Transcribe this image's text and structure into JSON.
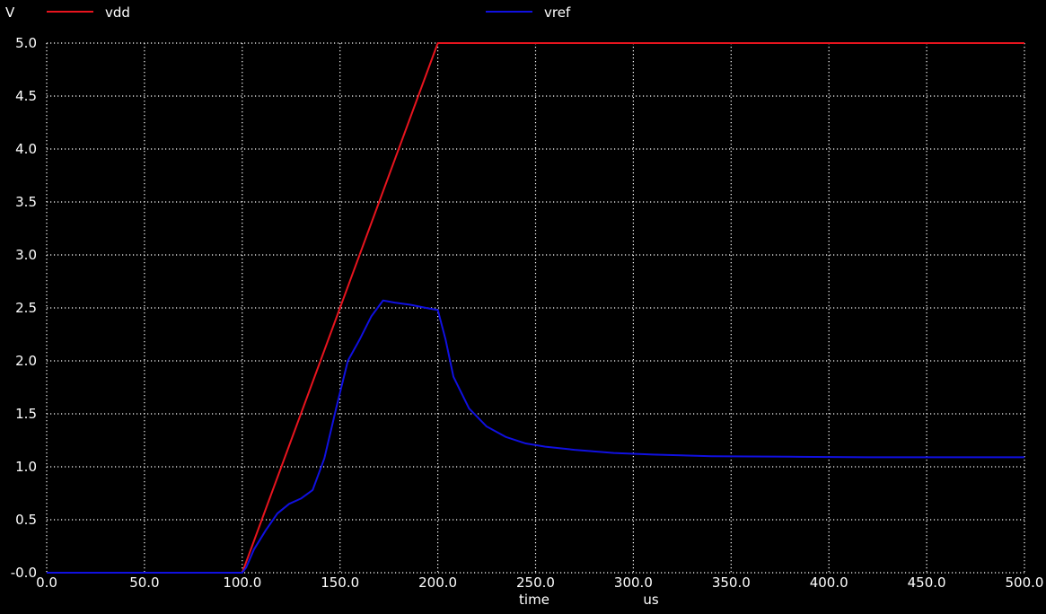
{
  "chart_data": {
    "type": "line",
    "ylabel": "V",
    "xlabel": "time",
    "xunit": "us",
    "xlim": [
      0,
      500
    ],
    "ylim": [
      0,
      5
    ],
    "x_ticks": [
      0,
      50,
      100,
      150,
      200,
      250,
      300,
      350,
      400,
      450,
      500
    ],
    "x_tick_labels": [
      "0.0",
      "50.0",
      "100.0",
      "150.0",
      "200.0",
      "250.0",
      "300.0",
      "350.0",
      "400.0",
      "450.0",
      "500.0"
    ],
    "y_ticks": [
      0,
      0.5,
      1.0,
      1.5,
      2.0,
      2.5,
      3.0,
      3.5,
      4.0,
      4.5,
      5.0
    ],
    "y_tick_labels": [
      "-0.0",
      "0.5",
      "1.0",
      "1.5",
      "2.0",
      "2.5",
      "3.0",
      "3.5",
      "4.0",
      "4.5",
      "5.0"
    ],
    "grid": true,
    "legend": "top",
    "series": [
      {
        "name": "vdd",
        "color": "#e8141e",
        "x": [
          0,
          100,
          200,
          500
        ],
        "y": [
          0,
          0,
          5.0,
          5.0
        ]
      },
      {
        "name": "vref",
        "color": "#1010e0",
        "x": [
          0,
          100,
          102,
          106,
          112,
          118,
          124,
          130,
          136,
          142,
          148,
          154,
          160,
          166,
          172,
          178,
          186,
          194,
          200,
          204,
          208,
          216,
          225,
          235,
          245,
          255,
          270,
          290,
          310,
          340,
          380,
          420,
          460,
          500
        ],
        "y": [
          0,
          0,
          0.05,
          0.22,
          0.4,
          0.56,
          0.65,
          0.7,
          0.78,
          1.08,
          1.55,
          2.0,
          2.2,
          2.42,
          2.57,
          2.55,
          2.53,
          2.5,
          2.48,
          2.2,
          1.85,
          1.55,
          1.38,
          1.28,
          1.22,
          1.19,
          1.16,
          1.13,
          1.115,
          1.1,
          1.095,
          1.09,
          1.09,
          1.09
        ]
      }
    ]
  }
}
